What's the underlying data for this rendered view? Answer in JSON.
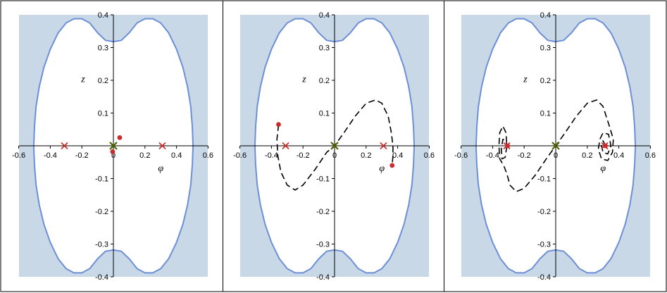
{
  "chart_data": [
    {
      "type": "line",
      "xlabel": "φ",
      "ylabel": "z",
      "xlim": [
        -0.6,
        0.6
      ],
      "ylim": [
        -0.4,
        0.4
      ],
      "xticks": [
        -0.6,
        -0.4,
        -0.2,
        0,
        0.2,
        0.4,
        0.6
      ],
      "yticks": [
        -0.4,
        -0.3,
        -0.2,
        -0.1,
        0.1,
        0.2,
        0.3,
        0.4
      ],
      "xtick_labels": [
        "-0.6",
        "-0.4",
        "-0.2",
        "0",
        "0.2",
        "0.4",
        "0.6"
      ],
      "ytick_labels": [
        "-0.4",
        "-0.3",
        "-0.2",
        "-0.1",
        "0.1",
        "0.2",
        "0.3",
        "0.4"
      ],
      "shaded_region_color": "#c8d8e6",
      "boundary_color": "#6d8fd6",
      "boundary_curve": [
        [
          0.0,
          0.318
        ],
        [
          0.05,
          0.322
        ],
        [
          0.1,
          0.345
        ],
        [
          0.15,
          0.375
        ],
        [
          0.2,
          0.388
        ],
        [
          0.25,
          0.388
        ],
        [
          0.3,
          0.375
        ],
        [
          0.35,
          0.345
        ],
        [
          0.4,
          0.295
        ],
        [
          0.44,
          0.24
        ],
        [
          0.47,
          0.18
        ],
        [
          0.49,
          0.12
        ],
        [
          0.5,
          0.06
        ],
        [
          0.505,
          0.0
        ]
      ],
      "markers": {
        "x": [
          [
            -0.31,
            0.0
          ],
          [
            0.31,
            0.0
          ]
        ],
        "color": "#cc2b2b"
      },
      "center_marker": {
        "x": 0.0,
        "y": 0.0,
        "color": "#4d6400"
      },
      "points": [
        [
          0.04,
          0.025
        ],
        [
          -0.005,
          -0.018
        ]
      ],
      "trajectory": []
    },
    {
      "type": "line",
      "xlabel": "φ",
      "ylabel": "z",
      "xlim": [
        -0.6,
        0.6
      ],
      "ylim": [
        -0.4,
        0.4
      ],
      "xticks": [
        -0.6,
        -0.4,
        -0.2,
        0,
        0.2,
        0.4,
        0.6
      ],
      "yticks": [
        -0.4,
        -0.3,
        -0.2,
        -0.1,
        0.1,
        0.2,
        0.3,
        0.4
      ],
      "xtick_labels": [
        "-0.6",
        "-0.4",
        "-0.2",
        "0",
        "0.2",
        "0.4",
        "0.6"
      ],
      "ytick_labels": [
        "-0.4",
        "-0.3",
        "-0.2",
        "-0.1",
        "0.1",
        "0.2",
        "0.3",
        "0.4"
      ],
      "shaded_region_color": "#c8d8e6",
      "boundary_color": "#6d8fd6",
      "boundary_curve": [
        [
          0.0,
          0.318
        ],
        [
          0.05,
          0.322
        ],
        [
          0.1,
          0.345
        ],
        [
          0.15,
          0.375
        ],
        [
          0.2,
          0.388
        ],
        [
          0.25,
          0.388
        ],
        [
          0.3,
          0.375
        ],
        [
          0.35,
          0.345
        ],
        [
          0.4,
          0.295
        ],
        [
          0.44,
          0.24
        ],
        [
          0.47,
          0.18
        ],
        [
          0.49,
          0.12
        ],
        [
          0.5,
          0.06
        ],
        [
          0.505,
          0.0
        ]
      ],
      "markers": {
        "x": [
          [
            -0.31,
            0.0
          ],
          [
            0.31,
            0.0
          ]
        ],
        "color": "#cc2b2b"
      },
      "center_marker": {
        "x": 0.0,
        "y": 0.0,
        "color": "#4d6400"
      },
      "points": [
        [
          -0.355,
          0.065
        ],
        [
          0.365,
          -0.06
        ]
      ],
      "trajectory": [
        [
          -0.355,
          0.065
        ],
        [
          -0.365,
          0.02
        ],
        [
          -0.36,
          -0.03
        ],
        [
          -0.34,
          -0.08
        ],
        [
          -0.3,
          -0.12
        ],
        [
          -0.25,
          -0.135
        ],
        [
          -0.2,
          -0.12
        ],
        [
          -0.12,
          -0.07
        ],
        [
          -0.05,
          -0.02
        ],
        [
          0.0,
          0.0
        ],
        [
          0.06,
          0.04
        ],
        [
          0.13,
          0.09
        ],
        [
          0.2,
          0.13
        ],
        [
          0.26,
          0.14
        ],
        [
          0.3,
          0.13
        ],
        [
          0.34,
          0.09
        ],
        [
          0.36,
          0.04
        ],
        [
          0.37,
          0.0
        ],
        [
          0.37,
          -0.03
        ],
        [
          0.365,
          -0.06
        ]
      ]
    },
    {
      "type": "line",
      "xlabel": "φ",
      "ylabel": "z",
      "xlim": [
        -0.6,
        0.6
      ],
      "ylim": [
        -0.4,
        0.4
      ],
      "xticks": [
        -0.6,
        -0.4,
        -0.2,
        0,
        0.2,
        0.4,
        0.6
      ],
      "yticks": [
        -0.4,
        -0.3,
        -0.2,
        -0.1,
        0.1,
        0.2,
        0.3,
        0.4
      ],
      "xtick_labels": [
        "-0.6",
        "-0.4",
        "-0.2",
        "0",
        "0.2",
        "0.4",
        "0.6"
      ],
      "ytick_labels": [
        "-0.4",
        "-0.3",
        "-0.2",
        "-0.1",
        "0.1",
        "0.2",
        "0.3",
        "0.4"
      ],
      "shaded_region_color": "#c8d8e6",
      "boundary_color": "#6d8fd6",
      "boundary_curve": [
        [
          0.0,
          0.318
        ],
        [
          0.05,
          0.322
        ],
        [
          0.1,
          0.345
        ],
        [
          0.15,
          0.375
        ],
        [
          0.2,
          0.388
        ],
        [
          0.25,
          0.388
        ],
        [
          0.3,
          0.375
        ],
        [
          0.35,
          0.345
        ],
        [
          0.4,
          0.295
        ],
        [
          0.44,
          0.24
        ],
        [
          0.47,
          0.18
        ],
        [
          0.49,
          0.12
        ],
        [
          0.5,
          0.06
        ],
        [
          0.505,
          0.0
        ]
      ],
      "markers": {
        "x": [
          [
            -0.31,
            0.0
          ],
          [
            0.31,
            0.0
          ]
        ],
        "color": "#cc2b2b"
      },
      "center_marker": {
        "x": 0.0,
        "y": 0.0,
        "color": "#4d6400"
      },
      "points": [
        [
          -0.305,
          0.0
        ],
        [
          0.315,
          0.0
        ]
      ],
      "trajectory": [
        [
          0.315,
          0.0
        ],
        [
          0.3,
          0.015
        ],
        [
          0.29,
          0.0
        ],
        [
          0.3,
          -0.02
        ],
        [
          0.33,
          -0.025
        ],
        [
          0.35,
          0.0
        ],
        [
          0.335,
          0.035
        ],
        [
          0.3,
          0.04
        ],
        [
          0.28,
          0.02
        ],
        [
          0.27,
          -0.01
        ],
        [
          0.29,
          -0.04
        ],
        [
          0.33,
          -0.045
        ],
        [
          0.36,
          -0.02
        ],
        [
          0.365,
          0.02
        ],
        [
          0.34,
          0.06
        ],
        [
          0.3,
          0.12
        ],
        [
          0.26,
          0.14
        ],
        [
          0.2,
          0.13
        ],
        [
          0.13,
          0.09
        ],
        [
          0.06,
          0.04
        ],
        [
          0.0,
          0.0
        ],
        [
          -0.06,
          -0.04
        ],
        [
          -0.13,
          -0.09
        ],
        [
          -0.2,
          -0.13
        ],
        [
          -0.25,
          -0.14
        ],
        [
          -0.29,
          -0.12
        ],
        [
          -0.31,
          -0.085
        ],
        [
          -0.33,
          -0.06
        ],
        [
          -0.355,
          -0.04
        ],
        [
          -0.36,
          0.0
        ],
        [
          -0.355,
          0.04
        ],
        [
          -0.335,
          0.06
        ],
        [
          -0.315,
          0.04
        ],
        [
          -0.31,
          0.0
        ],
        [
          -0.32,
          -0.035
        ],
        [
          -0.34,
          -0.04
        ],
        [
          -0.345,
          -0.01
        ],
        [
          -0.335,
          0.02
        ],
        [
          -0.32,
          0.015
        ],
        [
          -0.305,
          0.0
        ]
      ]
    }
  ]
}
